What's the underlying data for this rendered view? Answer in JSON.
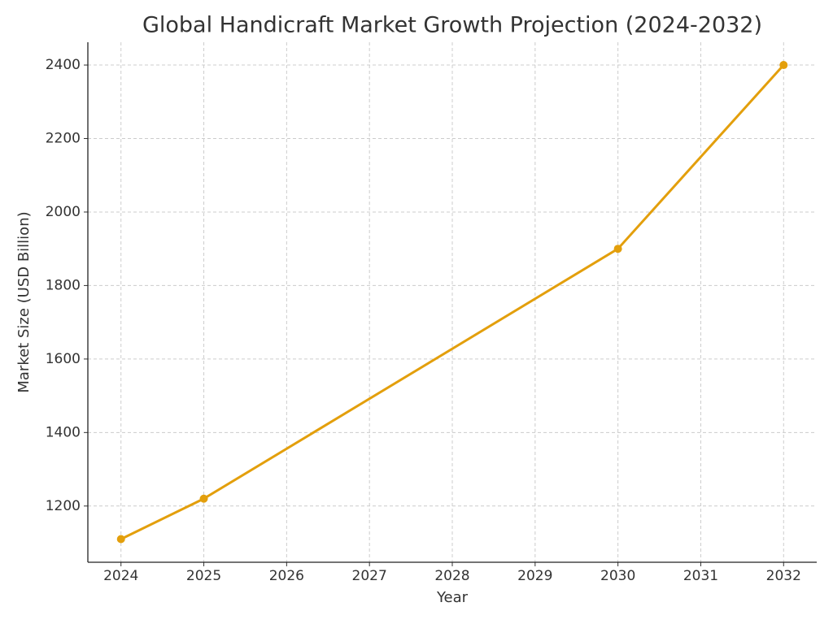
{
  "chart_data": {
    "type": "line",
    "title": "Global Handicraft Market Growth Projection (2024-2032)",
    "x_label": "Year",
    "y_label": "Market Size (USD Billion)",
    "x": [
      2024,
      2025,
      2030,
      2032
    ],
    "series": [
      {
        "name": "Market Size",
        "color": "#e39f0c",
        "values": [
          1110,
          1220,
          1900,
          2400
        ]
      }
    ],
    "xlim": [
      2023.6,
      2032.4
    ],
    "xticks": [
      2024,
      2025,
      2026,
      2027,
      2028,
      2029,
      2030,
      2031,
      2032
    ],
    "ylim": [
      1047,
      2462
    ],
    "yticks": [
      1200,
      1400,
      1600,
      1800,
      2000,
      2200,
      2400
    ],
    "grid": true
  }
}
